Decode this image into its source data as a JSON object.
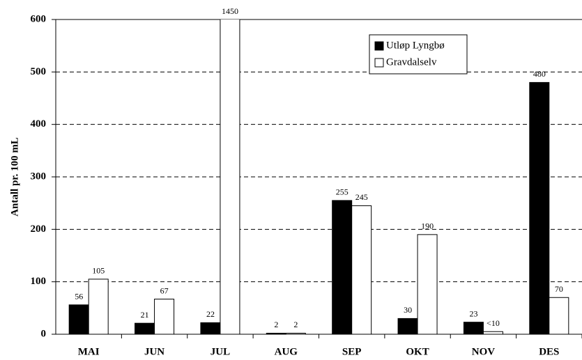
{
  "chart_data": {
    "type": "bar",
    "y_label": "Antall pr. 100 mL",
    "categories": [
      "MAI",
      "JUN",
      "JUL",
      "AUG",
      "SEP",
      "OKT",
      "NOV",
      "DES"
    ],
    "series": [
      {
        "name": "Utløp Lyngbø",
        "color": "#000000",
        "values": [
          56,
          21,
          22,
          2,
          255,
          30,
          23,
          480
        ]
      },
      {
        "name": "Gravdalselv",
        "color": "#ffffff",
        "values": [
          105,
          67,
          1450,
          2,
          245,
          190,
          5,
          70
        ],
        "value_labels": [
          "105",
          "67",
          "1450",
          "2",
          "245",
          "190",
          "<10",
          "70"
        ]
      }
    ],
    "ylim": [
      0,
      600
    ],
    "yticks": [
      0,
      100,
      200,
      300,
      400,
      500,
      600
    ],
    "grid": true,
    "legend": "top-right"
  }
}
